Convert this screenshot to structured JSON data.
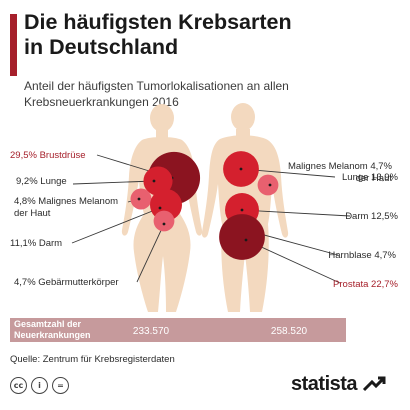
{
  "header": {
    "title_line1": "Die häufigsten Krebsarten",
    "title_line2": "in Deutschland",
    "subtitle_line1": "Anteil der häufigsten Tumorlokalisationen an allen",
    "subtitle_line2": "Krebsneuerkrankungen 2016"
  },
  "colors": {
    "accent": "#a6202b",
    "dark_red": "#8b1420",
    "red": "#d4202e",
    "pink": "#e8606f",
    "silhouette": "#f3d9bf",
    "total_bar": "#c69a9c",
    "label_highlight": "#a6202b",
    "label_normal": "#2b2b2b"
  },
  "chart_data": {
    "type": "bubble-on-silhouette",
    "unit": "%",
    "series": [
      {
        "name": "",
        "entries": [
          {
            "label": "Brustdrüse",
            "value": 29.5,
            "display": "29,5% Brustdrüse",
            "highlight": true
          },
          {
            "label": "Lunge",
            "value": 9.2,
            "display": "9,2% Lunge",
            "highlight": false
          },
          {
            "label": "Malignes Melanom der Haut",
            "value": 4.8,
            "display": [
              "4,8% Malignes Melanom",
              "der Haut"
            ],
            "highlight": false
          },
          {
            "label": "Darm",
            "value": 11.1,
            "display": "11,1% Darm",
            "highlight": false
          },
          {
            "label": "Gebärmutterkörper",
            "value": 4.7,
            "display": "4,7% Gebärmutterkörper",
            "highlight": false
          }
        ],
        "total": "233.570"
      },
      {
        "name": "",
        "entries": [
          {
            "label": "Lunge",
            "value": 13.9,
            "display": "Lunge 13,9%",
            "highlight": false
          },
          {
            "label": "Malignes Melanom der Haut",
            "value": 4.7,
            "display": [
              "Malignes Melanom 4,7%",
              "der Haut"
            ],
            "highlight": false
          },
          {
            "label": "Darm",
            "value": 12.5,
            "display": "Darm 12,5%",
            "highlight": false
          },
          {
            "label": "Harnblase",
            "value": 4.7,
            "display": "Harnblase 4,7%",
            "highlight": false
          },
          {
            "label": "Prostata",
            "value": 22.7,
            "display": "Prostata 22,7%",
            "highlight": true
          }
        ],
        "total": "258.520"
      }
    ],
    "total_label_line1": "Gesamtzahl der",
    "total_label_line2": "Neuerkrankungen"
  },
  "footer": {
    "source": "Quelle: Zentrum für Krebsregisterdaten",
    "license_icons": [
      {
        "name": "cc-icon",
        "glyph": "cc"
      },
      {
        "name": "by-icon",
        "glyph": "i"
      },
      {
        "name": "nd-icon",
        "glyph": "="
      }
    ],
    "logo": "statista"
  }
}
